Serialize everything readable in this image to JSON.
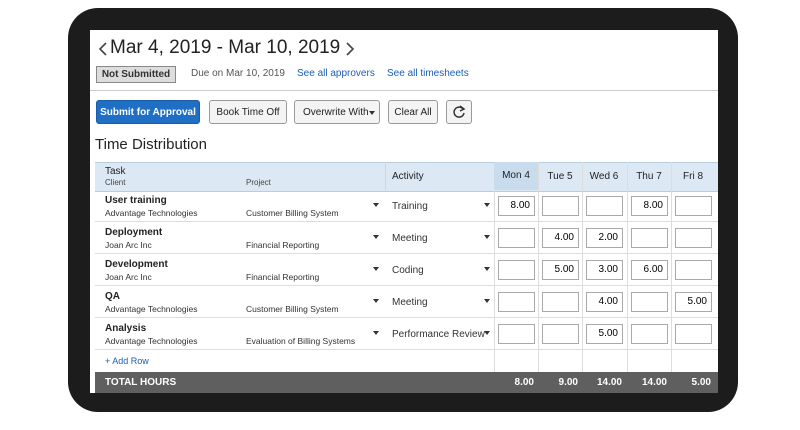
{
  "header": {
    "title": "Mar 4, 2019 - Mar 10, 2019",
    "status": "Not Submitted",
    "due": "Due on Mar 10, 2019",
    "links": [
      "See all approvers",
      "See all timesheets"
    ]
  },
  "toolbar": {
    "buttons": [
      "Submit for Approval",
      "Book Time Off",
      "Overwrite With",
      "Clear All"
    ]
  },
  "section_title": "Time Distribution",
  "table": {
    "columns": {
      "task": "Task",
      "client": "Client",
      "project": "Project",
      "activity": "Activity",
      "days": [
        "Mon 4",
        "Tue 5",
        "Wed 6",
        "Thu 7",
        "Fri 8"
      ]
    },
    "rows": [
      {
        "task": "User training",
        "client": "Advantage Technologies",
        "project": "Customer Billing System",
        "activity": "Training",
        "hours": [
          "8.00",
          null,
          null,
          "8.00",
          null
        ]
      },
      {
        "task": "Deployment",
        "client": "Joan Arc Inc",
        "project": "Financial Reporting",
        "activity": "Meeting",
        "hours": [
          null,
          "4.00",
          "2.00",
          null,
          null
        ]
      },
      {
        "task": "Development",
        "client": "Joan Arc Inc",
        "project": "Financial Reporting",
        "activity": "Coding",
        "hours": [
          null,
          "5.00",
          "3.00",
          "6.00",
          null
        ]
      },
      {
        "task": "QA",
        "client": "Advantage Technologies",
        "project": "Customer Billing System",
        "activity": "Meeting",
        "hours": [
          null,
          null,
          "4.00",
          null,
          "5.00"
        ]
      },
      {
        "task": "Analysis",
        "client": "Advantage Technologies",
        "project": "Evaluation of Billing Systems",
        "activity": "Performance Review",
        "hours": [
          null,
          null,
          "5.00",
          null,
          null
        ]
      }
    ],
    "add_row": "+ Add Row",
    "total_label": "TOTAL HOURS",
    "totals": [
      "8.00",
      "9.00",
      "14.00",
      "14.00",
      "5.00"
    ]
  }
}
